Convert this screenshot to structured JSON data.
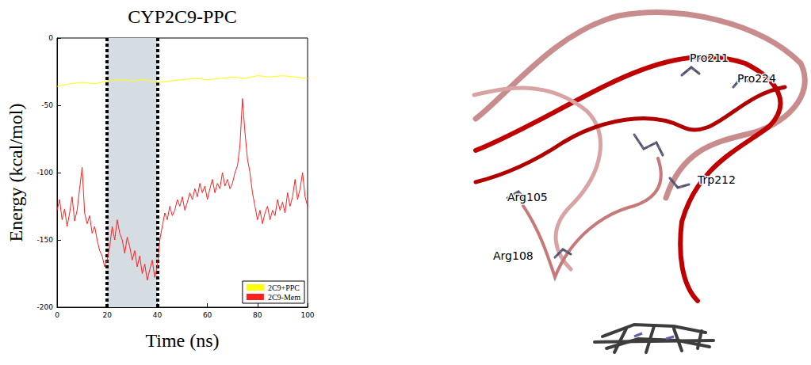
{
  "chart_data": {
    "type": "line",
    "title": "CYP2C9-PPC",
    "x_label": "Time (ns)",
    "y_label": "Energy (kcal/mol)",
    "xlim": [
      0,
      100
    ],
    "xticks": [
      0,
      20,
      40,
      60,
      80,
      100
    ],
    "ylim": [
      -200,
      0
    ],
    "yticks": [
      -200,
      -150,
      -100,
      -50,
      0
    ],
    "grid": false,
    "legend": "lower right",
    "highlight_x": [
      20,
      40
    ],
    "series": [
      {
        "name": "2C9+PPC",
        "color": "#ffff00",
        "line_style": "solid",
        "marker": "none",
        "x": [
          0,
          5,
          10,
          15,
          20,
          25,
          30,
          35,
          40,
          45,
          50,
          55,
          60,
          65,
          70,
          75,
          80,
          85,
          90,
          95,
          100
        ],
        "values": [
          -36,
          -34,
          -33,
          -34,
          -32,
          -31,
          -32,
          -31,
          -33,
          -32,
          -31,
          -30,
          -31,
          -30,
          -29,
          -30,
          -28,
          -29,
          -28,
          -29,
          -30
        ]
      },
      {
        "name": "2C9-Mem",
        "color": "#ff2020",
        "line_style": "solid",
        "marker": "none",
        "x": [
          0,
          1,
          2,
          3,
          4,
          5,
          6,
          7,
          8,
          9,
          10,
          11,
          12,
          13,
          14,
          15,
          16,
          17,
          18,
          19,
          20,
          21,
          22,
          23,
          24,
          25,
          26,
          27,
          28,
          29,
          30,
          31,
          32,
          33,
          34,
          35,
          36,
          37,
          38,
          39,
          40,
          41,
          42,
          43,
          44,
          45,
          46,
          47,
          48,
          49,
          50,
          51,
          52,
          53,
          54,
          55,
          56,
          57,
          58,
          59,
          60,
          61,
          62,
          63,
          64,
          65,
          66,
          67,
          68,
          69,
          70,
          71,
          72,
          73,
          74,
          75,
          76,
          77,
          78,
          79,
          80,
          81,
          82,
          83,
          84,
          85,
          86,
          87,
          88,
          89,
          90,
          91,
          92,
          93,
          94,
          95,
          96,
          97,
          98,
          99,
          100
        ],
        "values": [
          -128,
          -120,
          -135,
          -127,
          -140,
          -130,
          -118,
          -136,
          -128,
          -112,
          -96,
          -130,
          -138,
          -132,
          -145,
          -140,
          -150,
          -158,
          -162,
          -170,
          -165,
          -155,
          -140,
          -150,
          -135,
          -145,
          -150,
          -160,
          -148,
          -155,
          -165,
          -158,
          -170,
          -162,
          -175,
          -168,
          -180,
          -172,
          -165,
          -178,
          -170,
          -150,
          -140,
          -130,
          -135,
          -125,
          -132,
          -128,
          -120,
          -125,
          -118,
          -128,
          -122,
          -115,
          -120,
          -112,
          -118,
          -108,
          -115,
          -110,
          -120,
          -112,
          -105,
          -115,
          -108,
          -112,
          -100,
          -110,
          -105,
          -112,
          -108,
          -100,
          -95,
          -80,
          -45,
          -70,
          -90,
          -100,
          -115,
          -125,
          -135,
          -128,
          -138,
          -130,
          -125,
          -135,
          -128,
          -132,
          -120,
          -128,
          -122,
          -130,
          -115,
          -125,
          -118,
          -105,
          -120,
          -112,
          -100,
          -118,
          -125
        ]
      }
    ]
  },
  "structure": {
    "residue_labels": [
      "Pro211",
      "Pro224",
      "Arg105",
      "Trp212",
      "Arg108"
    ]
  }
}
